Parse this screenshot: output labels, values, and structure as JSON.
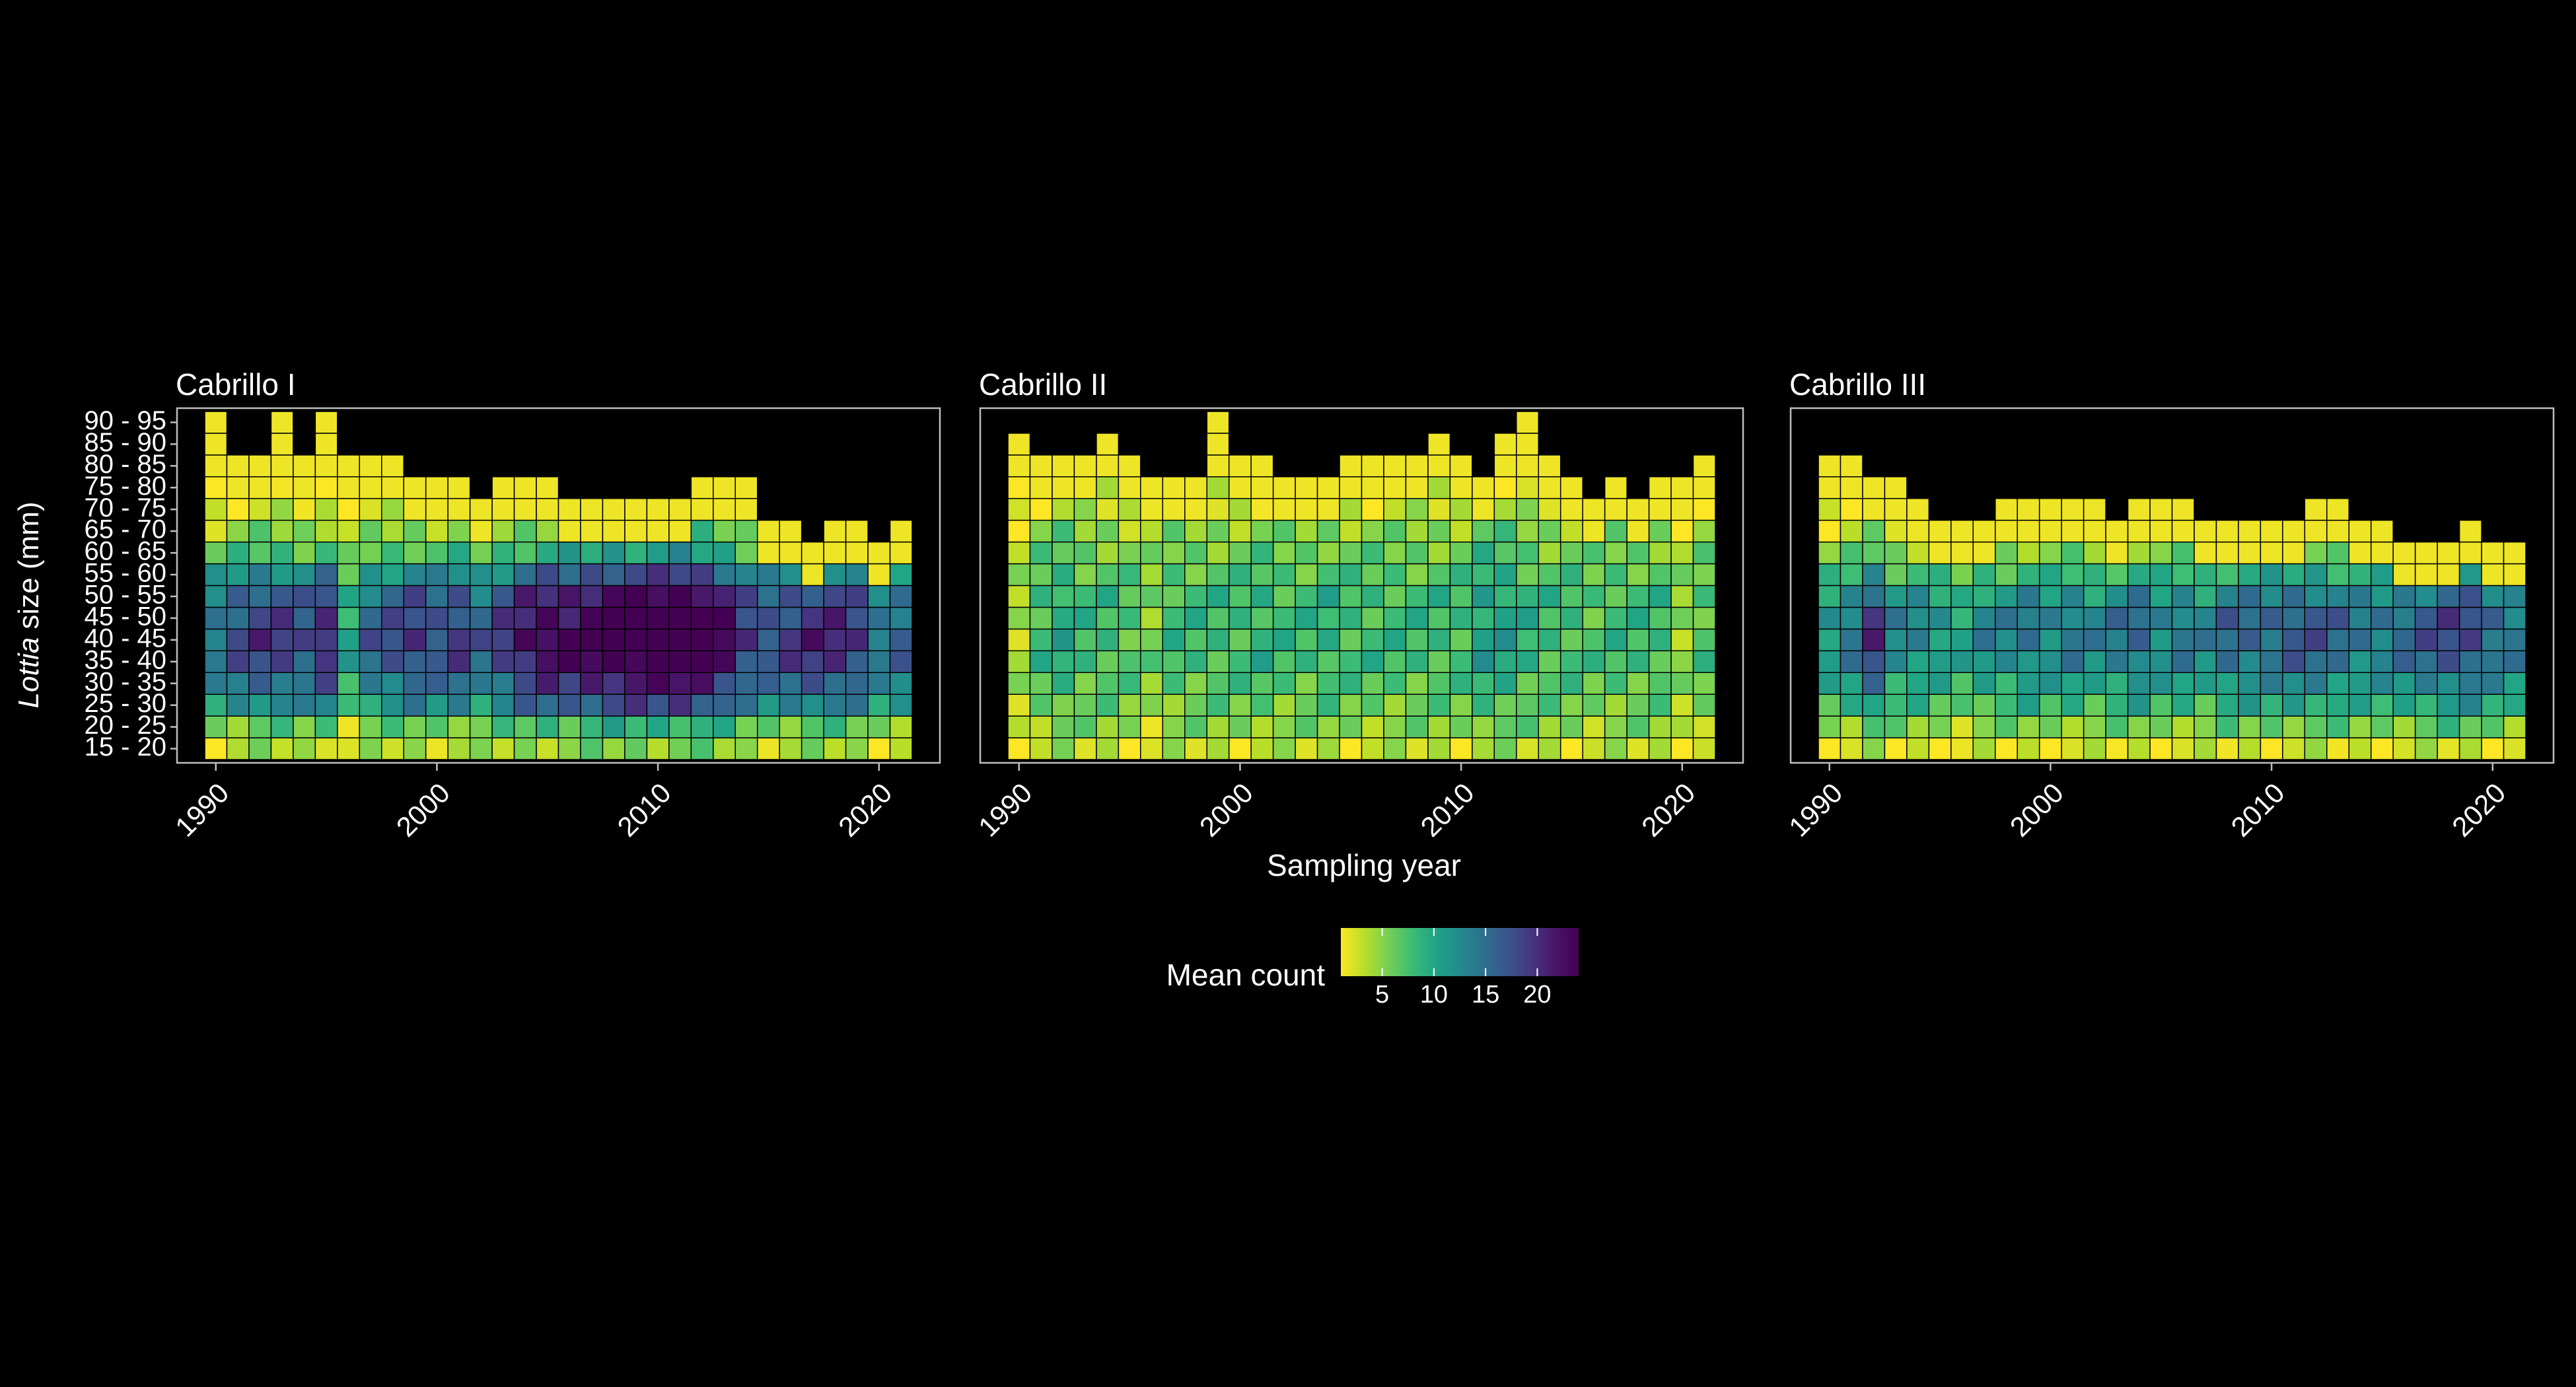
{
  "chart_data": {
    "type": "heatmap",
    "xlabel": "Sampling year",
    "ylabel": {
      "italic": "Lottia",
      "rest": " size (mm)"
    },
    "x_ticks": [
      "1990",
      "2000",
      "2010",
      "2020"
    ],
    "x_range": [
      1989,
      2022
    ],
    "size_classes": [
      "15 - 20",
      "20 - 25",
      "25 - 30",
      "30 - 35",
      "35 - 40",
      "40 - 45",
      "45 - 50",
      "50 - 55",
      "55 - 60",
      "60 - 65",
      "65 - 70",
      "70 - 75",
      "75 - 80",
      "80 - 85",
      "85 - 90",
      "90 - 95"
    ],
    "years": [
      1990,
      1991,
      1992,
      1993,
      1994,
      1995,
      1996,
      1997,
      1998,
      1999,
      2000,
      2001,
      2002,
      2003,
      2004,
      2005,
      2006,
      2007,
      2008,
      2009,
      2010,
      2011,
      2012,
      2013,
      2014,
      2015,
      2016,
      2017,
      2018,
      2019,
      2020,
      2021
    ],
    "legend": {
      "title": "Mean count",
      "ticks": [
        "5",
        "10",
        "15",
        "20"
      ],
      "tick_values": [
        5,
        10,
        15,
        20
      ],
      "range": [
        1,
        24
      ],
      "colors": [
        "#FDE725",
        "#B8DE29",
        "#74D055",
        "#3CBC75",
        "#20A386",
        "#238A8D",
        "#2D708E",
        "#39558C",
        "#453781",
        "#481568",
        "#440154"
      ]
    },
    "panels": [
      {
        "title": "Cabrillo I",
        "max_class": [
          16,
          14,
          14,
          16,
          14,
          16,
          14,
          14,
          14,
          13,
          13,
          13,
          12,
          13,
          13,
          13,
          12,
          12,
          12,
          12,
          12,
          12,
          13,
          13,
          13,
          11,
          11,
          10,
          11,
          11,
          10,
          11
        ],
        "profile": {
          "ramp": [
            3,
            5,
            10,
            12,
            14,
            15,
            14,
            13,
            10,
            6,
            4,
            2,
            1,
            1,
            1,
            1
          ],
          "year_factor": [
            1.0,
            1.2,
            1.3,
            1.3,
            1.2,
            1.4,
            0.7,
            1.1,
            1.2,
            1.3,
            1.2,
            1.3,
            1.1,
            1.3,
            1.5,
            1.6,
            1.6,
            1.7,
            1.8,
            1.8,
            1.8,
            1.9,
            1.8,
            1.6,
            1.3,
            1.2,
            1.3,
            1.4,
            1.4,
            1.3,
            1.0,
            1.1
          ]
        }
      },
      {
        "title": "Cabrillo II",
        "max_class": [
          15,
          14,
          14,
          14,
          15,
          14,
          13,
          13,
          13,
          16,
          14,
          14,
          13,
          13,
          13,
          14,
          14,
          14,
          14,
          15,
          14,
          13,
          15,
          16,
          14,
          13,
          12,
          13,
          12,
          13,
          13,
          14
        ],
        "profile": {
          "ramp": [
            3,
            5,
            6,
            7,
            8,
            8,
            8,
            8,
            7,
            6,
            5,
            3,
            2,
            1,
            1,
            1
          ],
          "year_factor": [
            0.5,
            1.0,
            1.2,
            1.0,
            1.0,
            0.9,
            0.7,
            1.0,
            1.0,
            1.0,
            1.0,
            1.1,
            1.0,
            1.0,
            1.1,
            1.0,
            1.0,
            1.0,
            1.0,
            1.0,
            1.0,
            1.3,
            1.3,
            1.1,
            1.0,
            1.0,
            0.9,
            1.0,
            1.0,
            1.0,
            0.6,
            0.9
          ]
        }
      },
      {
        "title": "Cabrillo III",
        "max_class": [
          14,
          14,
          13,
          13,
          12,
          11,
          11,
          11,
          12,
          12,
          12,
          12,
          12,
          11,
          12,
          12,
          12,
          11,
          11,
          11,
          11,
          11,
          12,
          12,
          11,
          11,
          10,
          10,
          10,
          11,
          10,
          10
        ],
        "profile": {
          "ramp": [
            2,
            5,
            8,
            10,
            12,
            13,
            13,
            11,
            8,
            5,
            3,
            2,
            1,
            1,
            1,
            1
          ],
          "year_factor": [
            0.9,
            1.1,
            1.5,
            1.0,
            1.0,
            0.9,
            0.8,
            1.0,
            1.0,
            1.1,
            1.0,
            1.1,
            1.0,
            1.1,
            1.2,
            1.0,
            1.1,
            1.0,
            1.2,
            1.2,
            1.2,
            1.3,
            1.3,
            1.2,
            1.1,
            1.1,
            1.2,
            1.3,
            1.4,
            1.4,
            1.2,
            1.1
          ]
        }
      }
    ]
  }
}
